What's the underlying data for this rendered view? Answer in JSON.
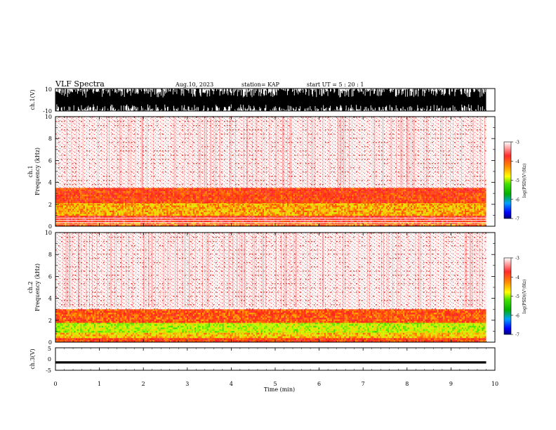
{
  "header": {
    "title": "VLF Spectra",
    "date": "Aug.10, 2023",
    "station": "station= KAP",
    "start": "start  UT  =   5  : 20 : 1"
  },
  "colors": {
    "waveform": "#000000",
    "axes": "#000000",
    "colormap": [
      "#ffffff",
      "#ff0000",
      "#ffa500",
      "#ffff00",
      "#7cfc00",
      "#00c800",
      "#00a0ff",
      "#0000ff",
      "#00007f"
    ]
  },
  "chart_data": [
    {
      "type": "line",
      "panel": "ch1-waveform",
      "ylabel": "ch.1(V)",
      "ylim": [
        -10,
        10
      ],
      "yticklabels": [
        "10",
        "-10"
      ],
      "xlim": [
        0,
        10
      ],
      "description_of_signal": "dense broadband waveform, amplitude saturating near +/-10 V from t=0 to about 9.8 min"
    },
    {
      "type": "heatmap",
      "panel": "ch1-spectrogram",
      "ylabel": "ch.1\nFrequency (kHz)",
      "ylabel_line1": "ch.1",
      "ylabel_line2": "Frequency (kHz)",
      "ylim": [
        0,
        10
      ],
      "yticks": [
        0,
        2,
        4,
        6,
        8,
        10
      ],
      "xlim": [
        0,
        10
      ],
      "data_end_min": 9.8,
      "bands": [
        {
          "from_khz": 0.0,
          "to_khz": 0.5,
          "level": "-4.2"
        },
        {
          "from_khz": 0.5,
          "to_khz": 1.0,
          "level": "-3.8"
        },
        {
          "from_khz": 1.0,
          "to_khz": 2.2,
          "level": "-4.5"
        },
        {
          "from_khz": 2.2,
          "to_khz": 3.5,
          "level": "-4.0"
        },
        {
          "from_khz": 3.5,
          "to_khz": 10.0,
          "level": "-3.3"
        }
      ],
      "colorbar": {
        "ticks": [
          "-3",
          "-4",
          "-5",
          "-6",
          "-7"
        ],
        "range": [
          -7,
          -3
        ],
        "label": "log(PSD)(V²/Hz)"
      }
    },
    {
      "type": "heatmap",
      "panel": "ch2-spectrogram",
      "ylabel_line1": "ch.2",
      "ylabel_line2": "Frequency (kHz)",
      "ylim": [
        0,
        10
      ],
      "yticks": [
        0,
        2,
        4,
        6,
        8,
        10
      ],
      "xlim": [
        0,
        10
      ],
      "data_end_min": 9.8,
      "bands": [
        {
          "from_khz": 0.0,
          "to_khz": 0.5,
          "level": "-4.0"
        },
        {
          "from_khz": 0.5,
          "to_khz": 1.0,
          "level": "-4.6"
        },
        {
          "from_khz": 1.0,
          "to_khz": 1.8,
          "level": "-5.0"
        },
        {
          "from_khz": 1.8,
          "to_khz": 3.0,
          "level": "-4.1"
        },
        {
          "from_khz": 3.0,
          "to_khz": 10.0,
          "level": "-3.3"
        }
      ],
      "colorbar": {
        "ticks": [
          "-3",
          "-4",
          "-5",
          "-6",
          "-7"
        ],
        "range": [
          -7,
          -3
        ],
        "label": "log(PSD)(V²/Hz)"
      }
    },
    {
      "type": "line",
      "panel": "ch3-waveform",
      "ylabel": "ch.3(V)",
      "ylim": [
        -5,
        5
      ],
      "yticklabels": [
        "5",
        "0",
        "-5"
      ],
      "xlim": [
        0,
        10
      ],
      "xticks": [
        0,
        1,
        2,
        3,
        4,
        5,
        6,
        7,
        8,
        9,
        10
      ],
      "xlabel": "Time  (min)",
      "description_of_signal": "thick flat band near -1.5 V from t=0 to about 9.8 min"
    }
  ]
}
